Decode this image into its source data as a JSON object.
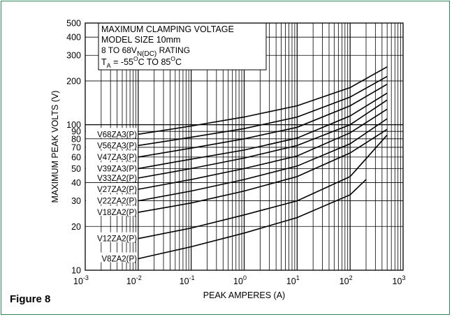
{
  "figure_label": "Figure 8",
  "chart_data": {
    "type": "line",
    "title_lines": [
      "MAXIMUM CLAMPING VOLTAGE",
      "MODEL SIZE 10mm"
    ],
    "rating_line": {
      "prefix": "8 TO 68V",
      "subscript": "N(DC)",
      "suffix": " RATING"
    },
    "temp_line": {
      "t": "T",
      "sub": "A",
      "mid1": " = -55",
      "sup1": "O",
      "mid2": "C TO 85",
      "sup2": "O",
      "end": "C"
    },
    "xlabel": "PEAK AMPERES (A)",
    "ylabel": "MAXIMUM PEAK VOLTS (V)",
    "x_scale": "log",
    "y_scale": "log",
    "xlim": [
      0.001,
      1000
    ],
    "ylim": [
      10,
      500
    ],
    "grid": true,
    "x_ticks": [
      {
        "base": "10",
        "exp": "-3"
      },
      {
        "base": "10",
        "exp": "-2"
      },
      {
        "base": "10",
        "exp": "-1"
      },
      {
        "base": "10",
        "exp": "0"
      },
      {
        "base": "10",
        "exp": "1"
      },
      {
        "base": "10",
        "exp": "2"
      },
      {
        "base": "10",
        "exp": "3"
      }
    ],
    "y_ticks": [
      "10",
      "20",
      "30",
      "40",
      "50",
      "60",
      "70",
      "80",
      "90",
      "100",
      "200",
      "300",
      "400",
      "500"
    ],
    "y_tick_values": [
      10,
      20,
      30,
      40,
      50,
      60,
      70,
      80,
      90,
      100,
      200,
      300,
      400,
      500
    ],
    "series": [
      {
        "name": "V68ZA3(P)",
        "x": [
          0.01,
          0.1,
          1,
          10,
          100,
          500
        ],
        "y": [
          86,
          98,
          113,
          135,
          180,
          250
        ]
      },
      {
        "name": "V56ZA3(P)",
        "x": [
          0.01,
          0.1,
          1,
          10,
          100,
          500
        ],
        "y": [
          72,
          82,
          94,
          113,
          155,
          215
        ]
      },
      {
        "name": "V47ZA3(P)",
        "x": [
          0.01,
          0.1,
          1,
          10,
          100,
          500
        ],
        "y": [
          60,
          69,
          80,
          96,
          135,
          190
        ]
      },
      {
        "name": "V39ZA3(P)",
        "x": [
          0.01,
          0.1,
          1,
          10,
          100,
          500
        ],
        "y": [
          50,
          58,
          67,
          81,
          115,
          165
        ]
      },
      {
        "name": "V33ZA2(P)",
        "x": [
          0.01,
          0.1,
          1,
          10,
          100,
          500
        ],
        "y": [
          43,
          50,
          59,
          72,
          100,
          148
        ]
      },
      {
        "name": "V27ZA2(P)",
        "x": [
          0.01,
          0.1,
          1,
          10,
          100,
          500
        ],
        "y": [
          36,
          42,
          50,
          61,
          88,
          128
        ]
      },
      {
        "name": "V22ZA2(P)",
        "x": [
          0.01,
          0.1,
          1,
          10,
          100,
          500
        ],
        "y": [
          30,
          35,
          42,
          52,
          74,
          110
        ]
      },
      {
        "name": "V18ZA2(P)",
        "x": [
          0.01,
          0.1,
          1,
          10,
          100,
          500
        ],
        "y": [
          25,
          29,
          35,
          44,
          64,
          93
        ]
      },
      {
        "name": "V12ZA2(P)",
        "x": [
          0.01,
          0.1,
          1,
          10,
          100,
          500
        ],
        "y": [
          16.5,
          19.5,
          24,
          30,
          44,
          85
        ]
      },
      {
        "name": "V8ZA2(P)",
        "x": [
          0.01,
          0.1,
          1,
          10,
          100,
          200
        ],
        "y": [
          12,
          14.5,
          18,
          23,
          33,
          42
        ]
      }
    ]
  }
}
